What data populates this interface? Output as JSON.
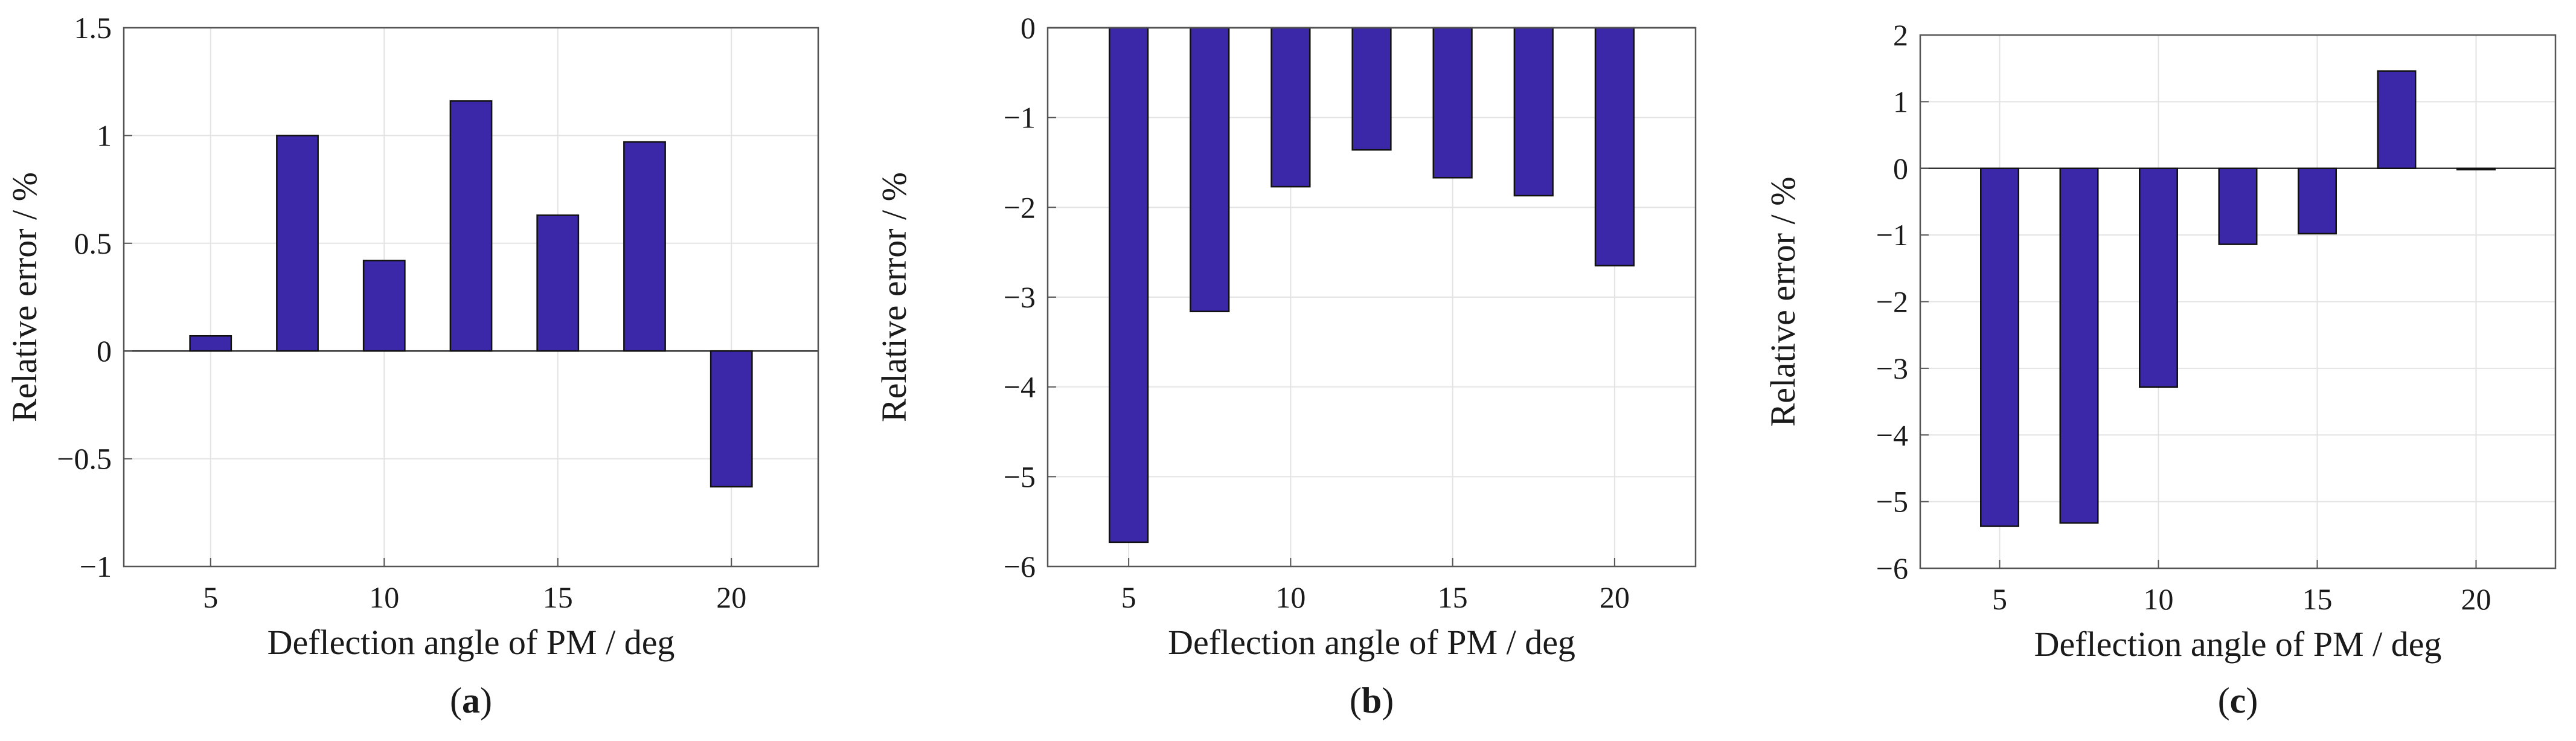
{
  "colors": {
    "bar": "#3b28a8"
  },
  "chart_data": [
    {
      "type": "bar",
      "caption_label": "a",
      "title": "",
      "xlabel": "Deflection angle of PM / deg",
      "ylabel": "Relative error / %",
      "x": [
        5,
        7.5,
        10,
        12.5,
        15,
        17.5,
        20
      ],
      "values": [
        0.07,
        1.0,
        0.42,
        1.16,
        0.63,
        0.97,
        -0.63
      ],
      "xticks": [
        5,
        10,
        15,
        20
      ],
      "xtick_labels": [
        "5",
        "10",
        "15",
        "20"
      ],
      "yticks": [
        -1,
        -0.5,
        0,
        0.5,
        1,
        1.5
      ],
      "ytick_labels": [
        "−1",
        "−0.5",
        "0",
        "0.5",
        "1",
        "1.5"
      ],
      "xlim": [
        2.5,
        22.5
      ],
      "ylim": [
        -1,
        1.5
      ],
      "grid": true
    },
    {
      "type": "bar",
      "caption_label": "b",
      "title": "",
      "xlabel": "Deflection angle of PM / deg",
      "ylabel": "Relative error / %",
      "x": [
        5,
        7.5,
        10,
        12.5,
        15,
        17.5,
        20
      ],
      "values": [
        -5.73,
        -3.16,
        -1.77,
        -1.36,
        -1.67,
        -1.87,
        -2.65
      ],
      "xticks": [
        5,
        10,
        15,
        20
      ],
      "xtick_labels": [
        "5",
        "10",
        "15",
        "20"
      ],
      "yticks": [
        -6,
        -5,
        -4,
        -3,
        -2,
        -1,
        0
      ],
      "ytick_labels": [
        "−6",
        "−5",
        "−4",
        "−3",
        "−2",
        "−1",
        "0"
      ],
      "xlim": [
        2.5,
        22.5
      ],
      "ylim": [
        -6,
        0
      ],
      "grid": true
    },
    {
      "type": "bar",
      "caption_label": "c",
      "title": "",
      "xlabel": "Deflection angle of PM / deg",
      "ylabel": "Relative error / %",
      "x": [
        5,
        7.5,
        10,
        12.5,
        15,
        17.5,
        20
      ],
      "values": [
        -5.37,
        -5.32,
        -3.28,
        -1.14,
        -0.98,
        1.46,
        -0.02
      ],
      "xticks": [
        5,
        10,
        15,
        20
      ],
      "xtick_labels": [
        "5",
        "10",
        "15",
        "20"
      ],
      "yticks": [
        -6,
        -5,
        -4,
        -3,
        -2,
        -1,
        0,
        1,
        2
      ],
      "ytick_labels": [
        "−6",
        "−5",
        "−4",
        "−3",
        "−2",
        "−1",
        "0",
        "1",
        "2"
      ],
      "xlim": [
        2.5,
        22.5
      ],
      "ylim": [
        -6,
        2
      ],
      "grid": true
    }
  ]
}
